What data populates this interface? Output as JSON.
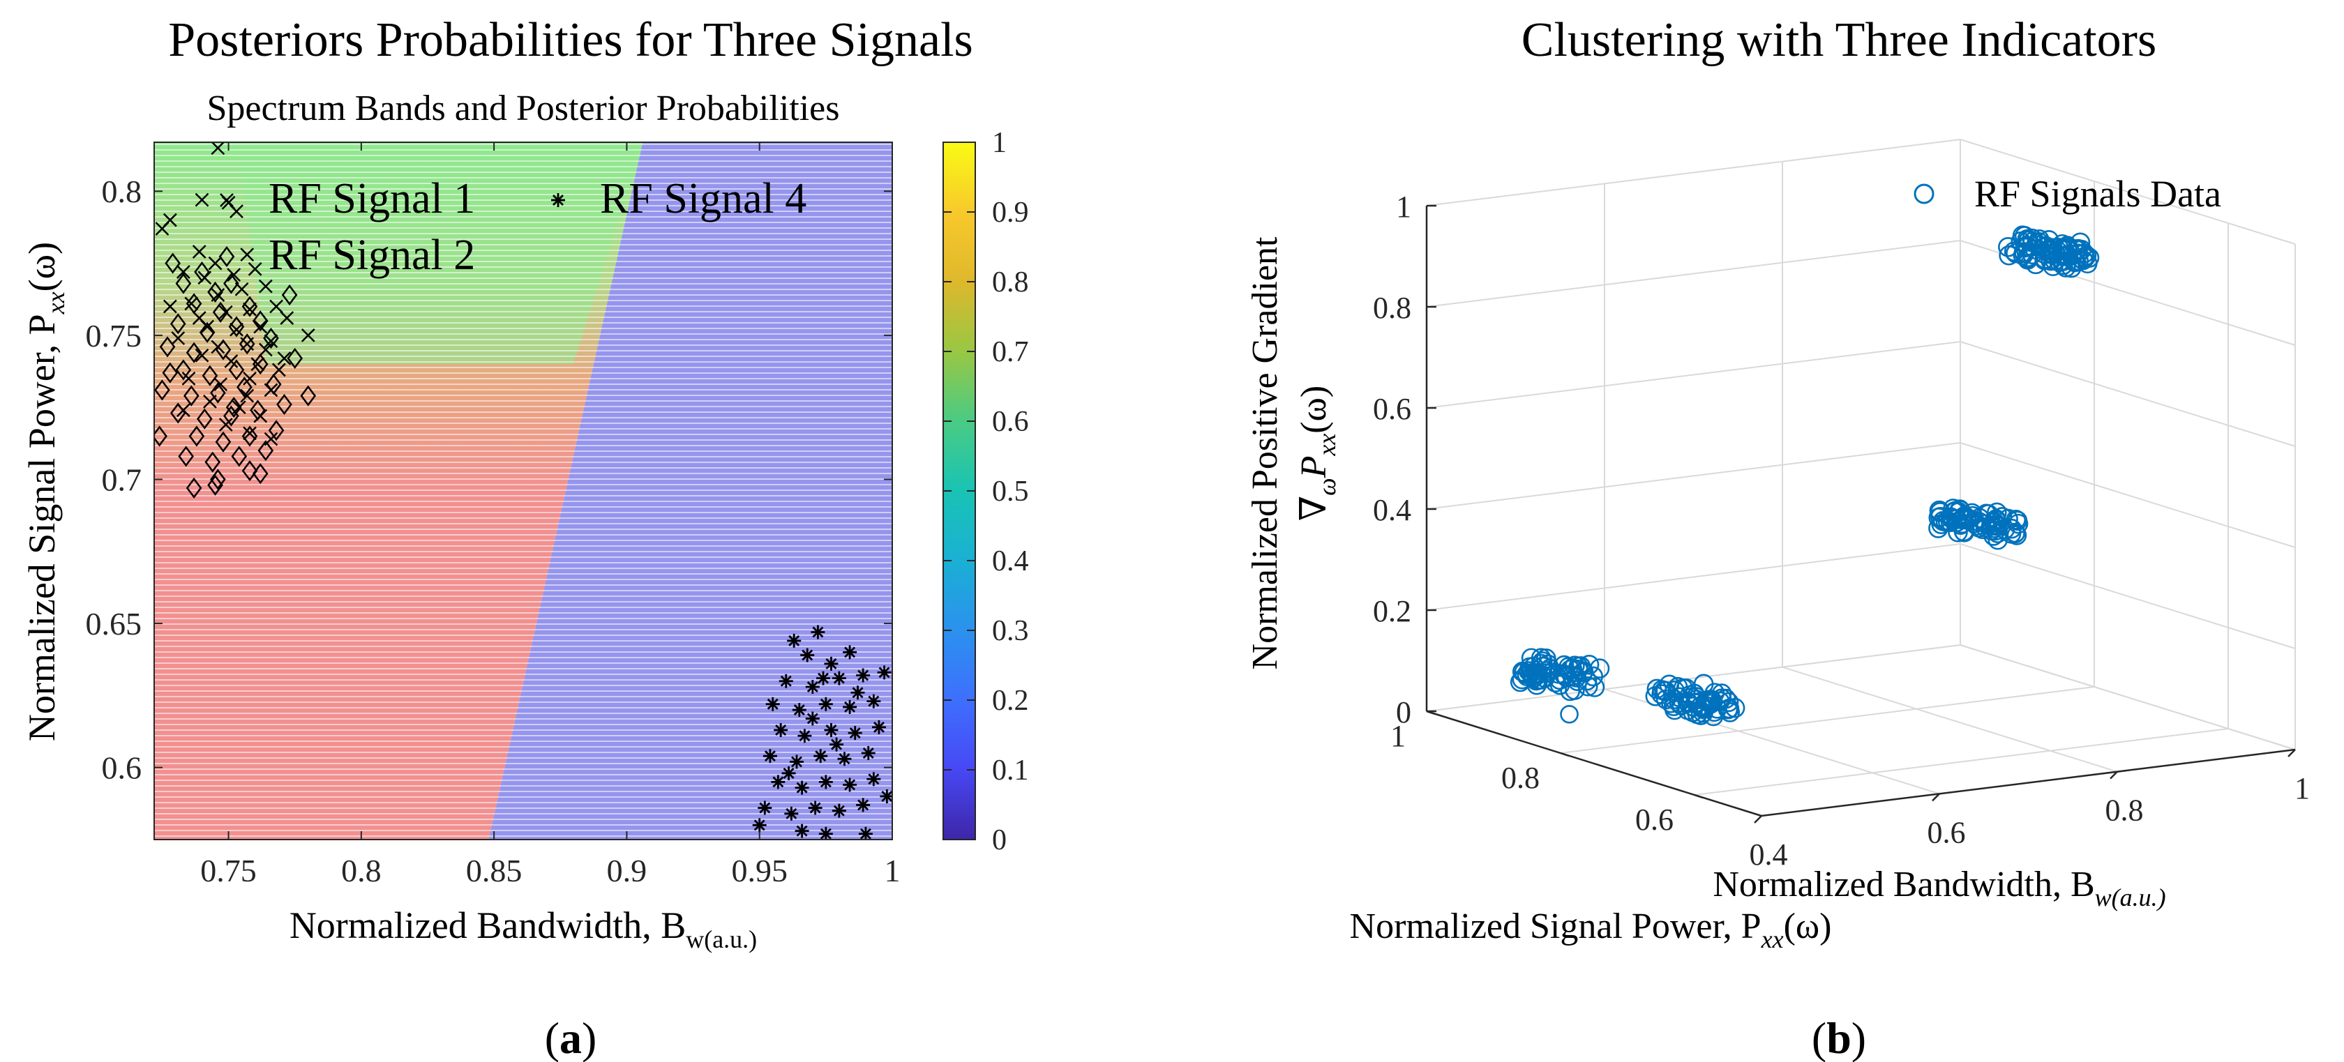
{
  "figure": {
    "panel_a_label": "(a)",
    "panel_b_label": "(b)"
  },
  "chart_data": [
    {
      "type": "scatter",
      "title": "Posteriors Probabilities for Three Signals",
      "subtitle": "Spectrum Bands and Posterior Probabilities",
      "xlabel": "Normalized Bandwidth, B",
      "xlabel_sub": "w(a.u.)",
      "ylabel": "Normalized Signal Power, P",
      "ylabel_sub": "xx",
      "ylabel_suffix": "(ω)",
      "xlim": [
        0.722,
        1.0
      ],
      "ylim": [
        0.575,
        0.817
      ],
      "xticks": [
        0.75,
        0.8,
        0.85,
        0.9,
        0.95,
        1
      ],
      "xtick_labels": [
        "0.75",
        "0.8",
        "0.85",
        "0.9",
        "0.95",
        "1"
      ],
      "yticks": [
        0.6,
        0.65,
        0.7,
        0.75,
        0.8
      ],
      "ytick_labels": [
        "0.6",
        "0.65",
        "0.7",
        "0.75",
        "0.8"
      ],
      "background_regions": [
        {
          "name": "red",
          "color": "#f08f8f",
          "label": "RF Signal 2 region"
        },
        {
          "name": "green",
          "color": "#8fe88f",
          "label": "RF Signal 1 region"
        },
        {
          "name": "blue",
          "color": "#9595ee",
          "label": "RF Signal 4 region"
        }
      ],
      "boundaries": {
        "green_blue": {
          "x_at_ymin": 0.848,
          "x_at_ymax": 0.906
        },
        "red_green_y": 0.74
      },
      "colorbar": {
        "ticks": [
          0,
          0.1,
          0.2,
          0.3,
          0.4,
          0.5,
          0.6,
          0.7,
          0.8,
          0.9,
          1
        ],
        "tick_labels": [
          "0",
          "0.1",
          "0.2",
          "0.3",
          "0.4",
          "0.5",
          "0.6",
          "0.7",
          "0.8",
          "0.9",
          "1"
        ],
        "colormap": "parula"
      },
      "series": [
        {
          "name": "RF Signal 1",
          "marker": "x",
          "points": [
            [
              0.746,
              0.815
            ],
            [
              0.725,
              0.787
            ],
            [
              0.728,
              0.79
            ],
            [
              0.74,
              0.797
            ],
            [
              0.75,
              0.796
            ],
            [
              0.753,
              0.793
            ],
            [
              0.739,
              0.779
            ],
            [
              0.745,
              0.775
            ],
            [
              0.757,
              0.778
            ],
            [
              0.733,
              0.772
            ],
            [
              0.741,
              0.77
            ],
            [
              0.752,
              0.771
            ],
            [
              0.76,
              0.773
            ],
            [
              0.746,
              0.764
            ],
            [
              0.755,
              0.766
            ],
            [
              0.764,
              0.767
            ],
            [
              0.728,
              0.76
            ],
            [
              0.736,
              0.761
            ],
            [
              0.749,
              0.758
            ],
            [
              0.758,
              0.759
            ],
            [
              0.768,
              0.76
            ],
            [
              0.742,
              0.753
            ],
            [
              0.753,
              0.752
            ],
            [
              0.762,
              0.753
            ],
            [
              0.772,
              0.756
            ],
            [
              0.731,
              0.749
            ],
            [
              0.746,
              0.746
            ],
            [
              0.757,
              0.747
            ],
            [
              0.766,
              0.748
            ],
            [
              0.78,
              0.75
            ],
            [
              0.74,
              0.743
            ],
            [
              0.751,
              0.741
            ],
            [
              0.761,
              0.74
            ],
            [
              0.771,
              0.742
            ],
            [
              0.735,
              0.735
            ],
            [
              0.747,
              0.733
            ],
            [
              0.758,
              0.735
            ],
            [
              0.766,
              0.731
            ],
            [
              0.743,
              0.727
            ],
            [
              0.754,
              0.725
            ],
            [
              0.762,
              0.722
            ],
            [
              0.749,
              0.719
            ],
            [
              0.758,
              0.716
            ],
            [
              0.766,
              0.714
            ],
            [
              0.733,
              0.724
            ],
            [
              0.764,
              0.745
            ],
            [
              0.757,
              0.729
            ],
            [
              0.739,
              0.756
            ],
            [
              0.769,
              0.738
            ]
          ]
        },
        {
          "name": "RF Signal 2",
          "marker": "diamond",
          "points": [
            [
              0.729,
              0.775
            ],
            [
              0.733,
              0.768
            ],
            [
              0.74,
              0.772
            ],
            [
              0.745,
              0.765
            ],
            [
              0.751,
              0.768
            ],
            [
              0.737,
              0.761
            ],
            [
              0.747,
              0.758
            ],
            [
              0.758,
              0.76
            ],
            [
              0.731,
              0.754
            ],
            [
              0.742,
              0.751
            ],
            [
              0.753,
              0.753
            ],
            [
              0.762,
              0.755
            ],
            [
              0.727,
              0.746
            ],
            [
              0.737,
              0.744
            ],
            [
              0.748,
              0.745
            ],
            [
              0.757,
              0.747
            ],
            [
              0.766,
              0.749
            ],
            [
              0.733,
              0.738
            ],
            [
              0.743,
              0.736
            ],
            [
              0.753,
              0.738
            ],
            [
              0.762,
              0.74
            ],
            [
              0.725,
              0.731
            ],
            [
              0.736,
              0.729
            ],
            [
              0.746,
              0.73
            ],
            [
              0.756,
              0.732
            ],
            [
              0.767,
              0.733
            ],
            [
              0.731,
              0.723
            ],
            [
              0.741,
              0.721
            ],
            [
              0.751,
              0.722
            ],
            [
              0.761,
              0.724
            ],
            [
              0.771,
              0.726
            ],
            [
              0.738,
              0.715
            ],
            [
              0.748,
              0.713
            ],
            [
              0.758,
              0.715
            ],
            [
              0.768,
              0.717
            ],
            [
              0.734,
              0.708
            ],
            [
              0.744,
              0.706
            ],
            [
              0.754,
              0.708
            ],
            [
              0.764,
              0.71
            ],
            [
              0.737,
              0.697
            ],
            [
              0.746,
              0.7
            ],
            [
              0.758,
              0.703
            ],
            [
              0.762,
              0.702
            ],
            [
              0.724,
              0.715
            ],
            [
              0.728,
              0.737
            ],
            [
              0.78,
              0.729
            ],
            [
              0.775,
              0.742
            ],
            [
              0.773,
              0.764
            ],
            [
              0.745,
              0.698
            ],
            [
              0.752,
              0.725
            ]
          ]
        },
        {
          "name": "RF Signal 4",
          "marker": "asterisk",
          "points": [
            [
              0.963,
              0.644
            ],
            [
              0.972,
              0.647
            ],
            [
              0.968,
              0.639
            ],
            [
              0.977,
              0.636
            ],
            [
              0.984,
              0.64
            ],
            [
              0.96,
              0.63
            ],
            [
              0.97,
              0.628
            ],
            [
              0.98,
              0.631
            ],
            [
              0.989,
              0.632
            ],
            [
              0.997,
              0.633
            ],
            [
              0.955,
              0.622
            ],
            [
              0.965,
              0.62
            ],
            [
              0.975,
              0.622
            ],
            [
              0.984,
              0.621
            ],
            [
              0.993,
              0.623
            ],
            [
              0.958,
              0.613
            ],
            [
              0.967,
              0.611
            ],
            [
              0.977,
              0.613
            ],
            [
              0.986,
              0.612
            ],
            [
              0.995,
              0.614
            ],
            [
              0.954,
              0.604
            ],
            [
              0.964,
              0.602
            ],
            [
              0.973,
              0.604
            ],
            [
              0.982,
              0.603
            ],
            [
              0.991,
              0.605
            ],
            [
              0.957,
              0.595
            ],
            [
              0.966,
              0.593
            ],
            [
              0.975,
              0.595
            ],
            [
              0.984,
              0.594
            ],
            [
              0.993,
              0.596
            ],
            [
              0.952,
              0.586
            ],
            [
              0.962,
              0.584
            ],
            [
              0.971,
              0.586
            ],
            [
              0.98,
              0.585
            ],
            [
              0.989,
              0.587
            ],
            [
              0.95,
              0.58
            ],
            [
              0.966,
              0.578
            ],
            [
              0.975,
              0.577
            ],
            [
              0.99,
              0.577
            ],
            [
              0.998,
              0.59
            ],
            [
              0.97,
              0.617
            ],
            [
              0.979,
              0.608
            ],
            [
              0.961,
              0.598
            ],
            [
              0.987,
              0.626
            ],
            [
              0.974,
              0.631
            ]
          ]
        }
      ],
      "legend": [
        "RF Signal 1",
        "RF Signal 4",
        "RF Signal 2"
      ]
    },
    {
      "type": "scatter3d",
      "title": "Clustering with Three Indicators",
      "xlabel": "Normalized Bandwidth, B",
      "xlabel_sub": "w(a.u.)",
      "ylabel": "Normalized Signal Power, P",
      "ylabel_sub": "xx",
      "ylabel_suffix": "(ω)",
      "zlabel_line1": "Normalized Positive Gradient",
      "zlabel_line2": "∇",
      "zlabel_line2_sub": "ω",
      "zlabel_line2_p": "P",
      "zlabel_line2_p_sub": "xx",
      "zlabel_line2_suffix": "(ω)",
      "xlim": [
        0.4,
        1.0
      ],
      "ylim": [
        0.5,
        1.0
      ],
      "zlim": [
        0,
        1
      ],
      "xticks": [
        0.4,
        0.6,
        0.8,
        1
      ],
      "xtick_labels": [
        "0.4",
        "0.6",
        "0.8",
        "1"
      ],
      "yticks": [
        0.6,
        0.8,
        1
      ],
      "ytick_labels": [
        "0.6",
        "0.8",
        "1"
      ],
      "zticks": [
        0,
        0.2,
        0.4,
        0.6,
        0.8,
        1
      ],
      "ztick_labels": [
        "0",
        "0.2",
        "0.4",
        "0.6",
        "0.8",
        "1"
      ],
      "legend": [
        "RF Signals Data"
      ],
      "clusters": [
        {
          "name": "cluster-1",
          "center": [
            0.42,
            0.83,
            0.14
          ],
          "n": 60
        },
        {
          "name": "cluster-2",
          "center": [
            0.44,
            0.65,
            0.16
          ],
          "n": 60
        },
        {
          "name": "cluster-3",
          "center": [
            0.78,
            0.68,
            0.42
          ],
          "n": 70
        },
        {
          "name": "cluster-4",
          "center": [
            0.95,
            0.8,
            0.87
          ],
          "n": 80
        }
      ]
    }
  ]
}
